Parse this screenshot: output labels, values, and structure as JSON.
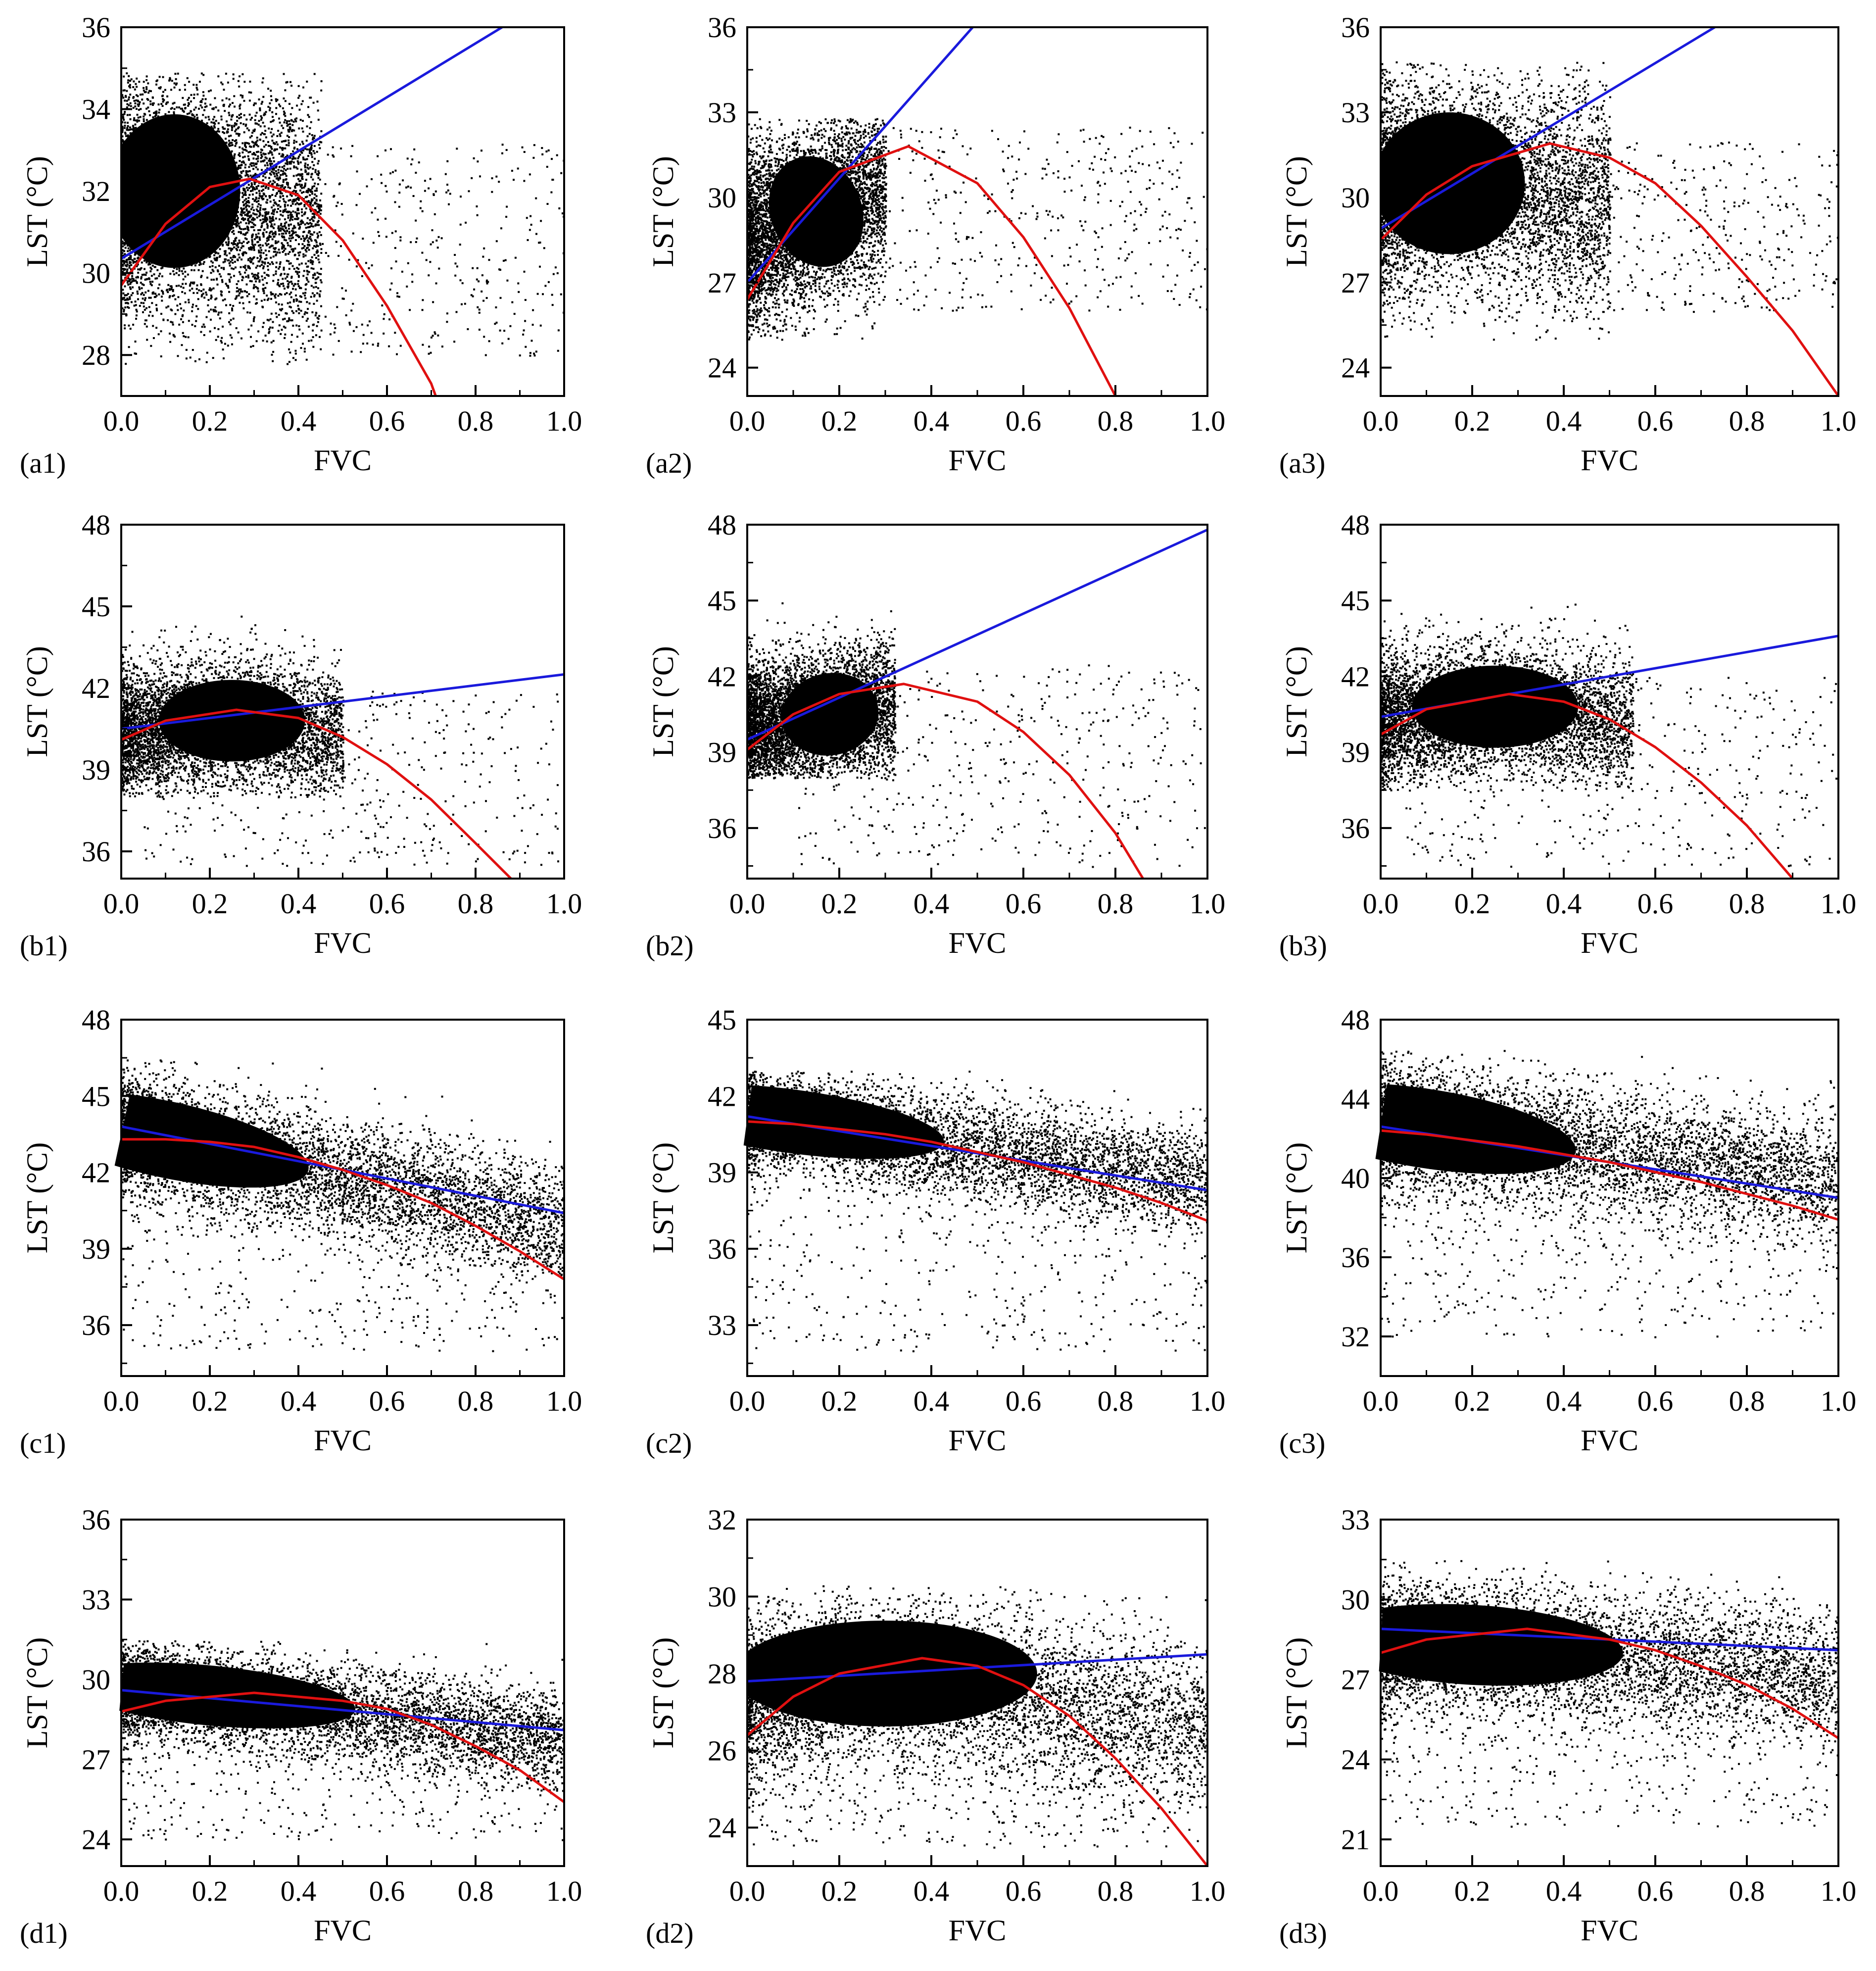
{
  "figure": {
    "x_axis_label": "FVC",
    "y_axis_label": "LST (°C)",
    "colors": {
      "points": "#000000",
      "linear_fit": "#1a1adc",
      "quadratic_fit": "#e01010",
      "axes": "#000000"
    }
  },
  "chart_data": [
    {
      "id": "a1",
      "label": "(a1)",
      "type": "scatter",
      "xlabel": "FVC",
      "ylabel": "LST (°C)",
      "xlim": [
        0,
        1.0
      ],
      "ylim": [
        27,
        36
      ],
      "xticks": [
        0.0,
        0.2,
        0.4,
        0.6,
        0.8,
        1.0
      ],
      "xtick_labels": [
        "0.0",
        "0.2",
        "0.4",
        "0.6",
        "0.8",
        "1.0"
      ],
      "yticks": [
        28,
        30,
        32,
        34,
        36
      ],
      "ytick_labels": [
        "28",
        "30",
        "32",
        "34",
        "36"
      ],
      "linear_fit": {
        "x": [
          0.0,
          0.86
        ],
        "y": [
          30.35,
          36.0
        ]
      },
      "quadratic_fit": {
        "x": [
          0.0,
          0.1,
          0.2,
          0.29,
          0.4,
          0.5,
          0.6,
          0.7,
          0.71
        ],
        "y": [
          29.7,
          31.2,
          32.1,
          32.3,
          31.9,
          30.8,
          29.2,
          27.3,
          27.0
        ]
      },
      "cloud": {
        "core_x": [
          0.0,
          0.45
        ],
        "core_y": [
          27.8,
          34.9
        ],
        "peak_x": 0.12,
        "peak_y": 32.0,
        "spread_y": 1.5,
        "slope": 0.0,
        "outlier_x": [
          0.3,
          1.0
        ],
        "outlier_y": [
          28.0,
          33.2
        ]
      }
    },
    {
      "id": "a2",
      "label": "(a2)",
      "type": "scatter",
      "xlabel": "FVC",
      "ylabel": "LST (°C)",
      "xlim": [
        0,
        1.0
      ],
      "ylim": [
        23,
        36
      ],
      "xticks": [
        0.0,
        0.2,
        0.4,
        0.6,
        0.8,
        1.0
      ],
      "xtick_labels": [
        "0.0",
        "0.2",
        "0.4",
        "0.6",
        "0.8",
        "1.0"
      ],
      "yticks": [
        24,
        27,
        30,
        33,
        36
      ],
      "ytick_labels": [
        "24",
        "27",
        "30",
        "33",
        "36"
      ],
      "linear_fit": {
        "x": [
          0.0,
          0.49
        ],
        "y": [
          27.0,
          36.0
        ]
      },
      "quadratic_fit": {
        "x": [
          0.0,
          0.1,
          0.2,
          0.35,
          0.5,
          0.6,
          0.7,
          0.8
        ],
        "y": [
          26.4,
          29.1,
          30.9,
          31.8,
          30.5,
          28.6,
          26.1,
          23.0
        ]
      },
      "cloud": {
        "core_x": [
          0.0,
          0.3
        ],
        "core_y": [
          25.0,
          32.8
        ],
        "peak_x": 0.15,
        "peak_y": 29.5,
        "spread_y": 1.6,
        "slope": 10.0,
        "outlier_x": [
          0.25,
          1.0
        ],
        "outlier_y": [
          26.0,
          32.5
        ]
      }
    },
    {
      "id": "a3",
      "label": "(a3)",
      "type": "scatter",
      "xlabel": "FVC",
      "ylabel": "LST (°C)",
      "xlim": [
        0,
        1.0
      ],
      "ylim": [
        23,
        36
      ],
      "xticks": [
        0.0,
        0.2,
        0.4,
        0.6,
        0.8,
        1.0
      ],
      "xtick_labels": [
        "0.0",
        "0.2",
        "0.4",
        "0.6",
        "0.8",
        "1.0"
      ],
      "yticks": [
        24,
        27,
        30,
        33,
        36
      ],
      "ytick_labels": [
        "24",
        "27",
        "30",
        "33",
        "36"
      ],
      "linear_fit": {
        "x": [
          0.0,
          0.73
        ],
        "y": [
          28.9,
          36.0
        ]
      },
      "quadratic_fit": {
        "x": [
          0.0,
          0.1,
          0.2,
          0.37,
          0.5,
          0.6,
          0.7,
          0.8,
          0.9,
          1.0
        ],
        "y": [
          28.5,
          30.1,
          31.1,
          31.9,
          31.4,
          30.5,
          29.0,
          27.2,
          25.3,
          23.0
        ]
      },
      "cloud": {
        "core_x": [
          0.0,
          0.5
        ],
        "core_y": [
          25.0,
          34.8
        ],
        "peak_x": 0.15,
        "peak_y": 30.5,
        "spread_y": 2.0,
        "slope": 0.0,
        "outlier_x": [
          0.3,
          1.0
        ],
        "outlier_y": [
          26.0,
          32.0
        ]
      }
    },
    {
      "id": "b1",
      "label": "(b1)",
      "type": "scatter",
      "xlabel": "FVC",
      "ylabel": "LST (°C)",
      "xlim": [
        0,
        1.0
      ],
      "ylim": [
        35,
        48
      ],
      "xticks": [
        0.0,
        0.2,
        0.4,
        0.6,
        0.8,
        1.0
      ],
      "xtick_labels": [
        "0.0",
        "0.2",
        "0.4",
        "0.6",
        "0.8",
        "1.0"
      ],
      "yticks": [
        36,
        39,
        42,
        45,
        48
      ],
      "ytick_labels": [
        "36",
        "39",
        "42",
        "45",
        "48"
      ],
      "linear_fit": {
        "x": [
          0.0,
          1.0
        ],
        "y": [
          40.5,
          42.5
        ]
      },
      "quadratic_fit": {
        "x": [
          0.0,
          0.1,
          0.26,
          0.4,
          0.5,
          0.6,
          0.7,
          0.8,
          0.88
        ],
        "y": [
          40.1,
          40.8,
          41.2,
          40.9,
          40.2,
          39.2,
          37.9,
          36.3,
          35.0
        ]
      },
      "cloud": {
        "core_x": [
          0.0,
          0.5
        ],
        "core_y": [
          38.0,
          44.8
        ],
        "peak_x": 0.25,
        "peak_y": 40.8,
        "spread_y": 1.2,
        "slope": 0.0,
        "outlier_x": [
          0.05,
          1.0
        ],
        "outlier_y": [
          35.5,
          42.0
        ]
      }
    },
    {
      "id": "b2",
      "label": "(b2)",
      "type": "scatter",
      "xlabel": "FVC",
      "ylabel": "LST (°C)",
      "xlim": [
        0,
        1.0
      ],
      "ylim": [
        34,
        48
      ],
      "xticks": [
        0.0,
        0.2,
        0.4,
        0.6,
        0.8,
        1.0
      ],
      "xtick_labels": [
        "0.0",
        "0.2",
        "0.4",
        "0.6",
        "0.8",
        "1.0"
      ],
      "yticks": [
        36,
        39,
        42,
        45,
        48
      ],
      "ytick_labels": [
        "36",
        "39",
        "42",
        "45",
        "48"
      ],
      "linear_fit": {
        "x": [
          0.0,
          1.0
        ],
        "y": [
          39.5,
          47.8
        ]
      },
      "quadratic_fit": {
        "x": [
          0.0,
          0.1,
          0.2,
          0.34,
          0.5,
          0.6,
          0.7,
          0.8,
          0.86
        ],
        "y": [
          39.1,
          40.5,
          41.3,
          41.7,
          41.0,
          39.8,
          38.1,
          35.8,
          34.0
        ]
      },
      "cloud": {
        "core_x": [
          0.0,
          0.32
        ],
        "core_y": [
          38.0,
          45.0
        ],
        "peak_x": 0.18,
        "peak_y": 40.5,
        "spread_y": 1.3,
        "slope": 5.0,
        "outlier_x": [
          0.1,
          1.0
        ],
        "outlier_y": [
          34.5,
          42.5
        ]
      }
    },
    {
      "id": "b3",
      "label": "(b3)",
      "type": "scatter",
      "xlabel": "FVC",
      "ylabel": "LST (°C)",
      "xlim": [
        0,
        1.0
      ],
      "ylim": [
        34,
        48
      ],
      "xticks": [
        0.0,
        0.2,
        0.4,
        0.6,
        0.8,
        1.0
      ],
      "xtick_labels": [
        "0.0",
        "0.2",
        "0.4",
        "0.6",
        "0.8",
        "1.0"
      ],
      "yticks": [
        36,
        39,
        42,
        45,
        48
      ],
      "ytick_labels": [
        "36",
        "39",
        "42",
        "45",
        "48"
      ],
      "linear_fit": {
        "x": [
          0.0,
          1.0
        ],
        "y": [
          40.4,
          43.6
        ]
      },
      "quadratic_fit": {
        "x": [
          0.0,
          0.1,
          0.28,
          0.4,
          0.5,
          0.6,
          0.7,
          0.8,
          0.9
        ],
        "y": [
          39.7,
          40.7,
          41.3,
          41.0,
          40.3,
          39.2,
          37.8,
          36.1,
          34.0
        ]
      },
      "cloud": {
        "core_x": [
          0.0,
          0.55
        ],
        "core_y": [
          37.5,
          45.0
        ],
        "peak_x": 0.25,
        "peak_y": 40.8,
        "spread_y": 1.3,
        "slope": 0.0,
        "outlier_x": [
          0.05,
          1.0
        ],
        "outlier_y": [
          34.5,
          42.0
        ]
      }
    },
    {
      "id": "c1",
      "label": "(c1)",
      "type": "scatter",
      "xlabel": "FVC",
      "ylabel": "LST (°C)",
      "xlim": [
        0,
        1.0
      ],
      "ylim": [
        34,
        48
      ],
      "xticks": [
        0.0,
        0.2,
        0.4,
        0.6,
        0.8,
        1.0
      ],
      "xtick_labels": [
        "0.0",
        "0.2",
        "0.4",
        "0.6",
        "0.8",
        "1.0"
      ],
      "yticks": [
        36,
        39,
        42,
        45,
        48
      ],
      "ytick_labels": [
        "36",
        "39",
        "42",
        "45",
        "48"
      ],
      "linear_fit": {
        "x": [
          0.0,
          1.0
        ],
        "y": [
          43.8,
          40.4
        ]
      },
      "quadratic_fit": {
        "x": [
          0.0,
          0.1,
          0.2,
          0.3,
          0.4,
          0.5,
          0.6,
          0.7,
          0.8,
          0.9,
          1.0
        ],
        "y": [
          43.3,
          43.3,
          43.2,
          43.0,
          42.6,
          42.1,
          41.5,
          40.8,
          39.9,
          38.9,
          37.8
        ]
      },
      "cloud": {
        "core_x": [
          0.0,
          1.0
        ],
        "core_y": [
          35.0,
          46.5
        ],
        "peak_x": 0.1,
        "peak_y": 43.3,
        "spread_y": 1.2,
        "slope": -5.5,
        "outlier_x": [
          0.0,
          1.0
        ],
        "outlier_y": [
          35.0,
          42.0
        ]
      }
    },
    {
      "id": "c2",
      "label": "(c2)",
      "type": "scatter",
      "xlabel": "FVC",
      "ylabel": "LST (°C)",
      "xlim": [
        0,
        1.0
      ],
      "ylim": [
        31,
        45
      ],
      "xticks": [
        0.0,
        0.2,
        0.4,
        0.6,
        0.8,
        1.0
      ],
      "xtick_labels": [
        "0.0",
        "0.2",
        "0.4",
        "0.6",
        "0.8",
        "1.0"
      ],
      "yticks": [
        33,
        36,
        39,
        42,
        45
      ],
      "ytick_labels": [
        "33",
        "36",
        "39",
        "42",
        "45"
      ],
      "linear_fit": {
        "x": [
          0.0,
          1.0
        ],
        "y": [
          41.2,
          38.3
        ]
      },
      "quadratic_fit": {
        "x": [
          0.0,
          0.1,
          0.2,
          0.3,
          0.4,
          0.5,
          0.6,
          0.7,
          0.8,
          0.9,
          1.0
        ],
        "y": [
          41.0,
          40.9,
          40.7,
          40.5,
          40.2,
          39.8,
          39.4,
          38.9,
          38.4,
          37.8,
          37.1
        ]
      },
      "cloud": {
        "core_x": [
          0.0,
          1.0
        ],
        "core_y": [
          33.0,
          43.0
        ],
        "peak_x": 0.1,
        "peak_y": 41.0,
        "spread_y": 1.0,
        "slope": -3.5,
        "outlier_x": [
          0.0,
          1.0
        ],
        "outlier_y": [
          32.0,
          39.0
        ]
      }
    },
    {
      "id": "c3",
      "label": "(c3)",
      "type": "scatter",
      "xlabel": "FVC",
      "ylabel": "LST (°C)",
      "xlim": [
        0,
        1.0
      ],
      "ylim": [
        30,
        48
      ],
      "xticks": [
        0.0,
        0.2,
        0.4,
        0.6,
        0.8,
        1.0
      ],
      "xtick_labels": [
        "0.0",
        "0.2",
        "0.4",
        "0.6",
        "0.8",
        "1.0"
      ],
      "yticks": [
        32,
        36,
        40,
        44,
        48
      ],
      "ytick_labels": [
        "32",
        "36",
        "40",
        "44",
        "48"
      ],
      "linear_fit": {
        "x": [
          0.0,
          1.0
        ],
        "y": [
          42.6,
          39.0
        ]
      },
      "quadratic_fit": {
        "x": [
          0.0,
          0.1,
          0.2,
          0.3,
          0.4,
          0.5,
          0.6,
          0.7,
          0.8,
          0.9,
          1.0
        ],
        "y": [
          42.4,
          42.2,
          41.9,
          41.6,
          41.2,
          40.8,
          40.3,
          39.8,
          39.2,
          38.6,
          37.9
        ]
      },
      "cloud": {
        "core_x": [
          0.0,
          1.0
        ],
        "core_y": [
          31.5,
          46.5
        ],
        "peak_x": 0.1,
        "peak_y": 42.5,
        "spread_y": 1.6,
        "slope": -4.0,
        "outlier_x": [
          0.0,
          1.0
        ],
        "outlier_y": [
          32.0,
          40.0
        ]
      }
    },
    {
      "id": "d1",
      "label": "(d1)",
      "type": "scatter",
      "xlabel": "FVC",
      "ylabel": "LST (°C)",
      "xlim": [
        0,
        1.0
      ],
      "ylim": [
        23,
        36
      ],
      "xticks": [
        0.0,
        0.2,
        0.4,
        0.6,
        0.8,
        1.0
      ],
      "xtick_labels": [
        "0.0",
        "0.2",
        "0.4",
        "0.6",
        "0.8",
        "1.0"
      ],
      "yticks": [
        24,
        27,
        30,
        33,
        36
      ],
      "ytick_labels": [
        "24",
        "27",
        "30",
        "33",
        "36"
      ],
      "linear_fit": {
        "x": [
          0.0,
          1.0
        ],
        "y": [
          29.6,
          28.1
        ]
      },
      "quadratic_fit": {
        "x": [
          0.0,
          0.1,
          0.3,
          0.5,
          0.6,
          0.7,
          0.8,
          0.9,
          1.0
        ],
        "y": [
          28.8,
          29.2,
          29.5,
          29.2,
          28.9,
          28.3,
          27.5,
          26.6,
          25.4
        ]
      },
      "cloud": {
        "core_x": [
          0.0,
          1.0
        ],
        "core_y": [
          23.5,
          31.5
        ],
        "peak_x": 0.2,
        "peak_y": 29.4,
        "spread_y": 0.9,
        "slope": -2.5,
        "outlier_x": [
          0.0,
          1.0
        ],
        "outlier_y": [
          24.0,
          29.0
        ]
      }
    },
    {
      "id": "d2",
      "label": "(d2)",
      "type": "scatter",
      "xlabel": "FVC",
      "ylabel": "LST (°C)",
      "xlim": [
        0,
        1.0
      ],
      "ylim": [
        23,
        32
      ],
      "xticks": [
        0.0,
        0.2,
        0.4,
        0.6,
        0.8,
        1.0
      ],
      "xtick_labels": [
        "0.0",
        "0.2",
        "0.4",
        "0.6",
        "0.8",
        "1.0"
      ],
      "yticks": [
        24,
        26,
        28,
        30,
        32
      ],
      "ytick_labels": [
        "24",
        "26",
        "28",
        "30",
        "32"
      ],
      "linear_fit": {
        "x": [
          0.0,
          1.0
        ],
        "y": [
          27.8,
          28.5
        ]
      },
      "quadratic_fit": {
        "x": [
          0.0,
          0.1,
          0.2,
          0.38,
          0.5,
          0.6,
          0.7,
          0.8,
          0.9,
          1.0
        ],
        "y": [
          26.4,
          27.4,
          28.0,
          28.4,
          28.2,
          27.7,
          26.9,
          25.8,
          24.5,
          23.0
        ]
      },
      "cloud": {
        "core_x": [
          0.0,
          1.0
        ],
        "core_y": [
          24.0,
          30.3
        ],
        "peak_x": 0.3,
        "peak_y": 28.0,
        "spread_y": 1.1,
        "slope": 0.0,
        "outlier_x": [
          0.0,
          1.0
        ],
        "outlier_y": [
          23.5,
          27.0
        ]
      }
    },
    {
      "id": "d3",
      "label": "(d3)",
      "type": "scatter",
      "xlabel": "FVC",
      "ylabel": "LST (°C)",
      "xlim": [
        0,
        1.0
      ],
      "ylim": [
        20,
        33
      ],
      "xticks": [
        0.0,
        0.2,
        0.4,
        0.6,
        0.8,
        1.0
      ],
      "xtick_labels": [
        "0.0",
        "0.2",
        "0.4",
        "0.6",
        "0.8",
        "1.0"
      ],
      "yticks": [
        21,
        24,
        27,
        30,
        33
      ],
      "ytick_labels": [
        "21",
        "24",
        "27",
        "30",
        "33"
      ],
      "linear_fit": {
        "x": [
          0.0,
          1.0
        ],
        "y": [
          28.9,
          28.1
        ]
      },
      "quadratic_fit": {
        "x": [
          0.0,
          0.1,
          0.32,
          0.5,
          0.6,
          0.7,
          0.8,
          0.9,
          1.0
        ],
        "y": [
          28.0,
          28.5,
          28.9,
          28.5,
          28.1,
          27.5,
          26.8,
          25.9,
          24.8
        ]
      },
      "cloud": {
        "core_x": [
          0.0,
          1.0
        ],
        "core_y": [
          24.0,
          31.5
        ],
        "peak_x": 0.2,
        "peak_y": 28.3,
        "spread_y": 1.2,
        "slope": -1.5,
        "outlier_x": [
          0.0,
          1.0
        ],
        "outlier_y": [
          21.5,
          27.0
        ]
      }
    }
  ]
}
